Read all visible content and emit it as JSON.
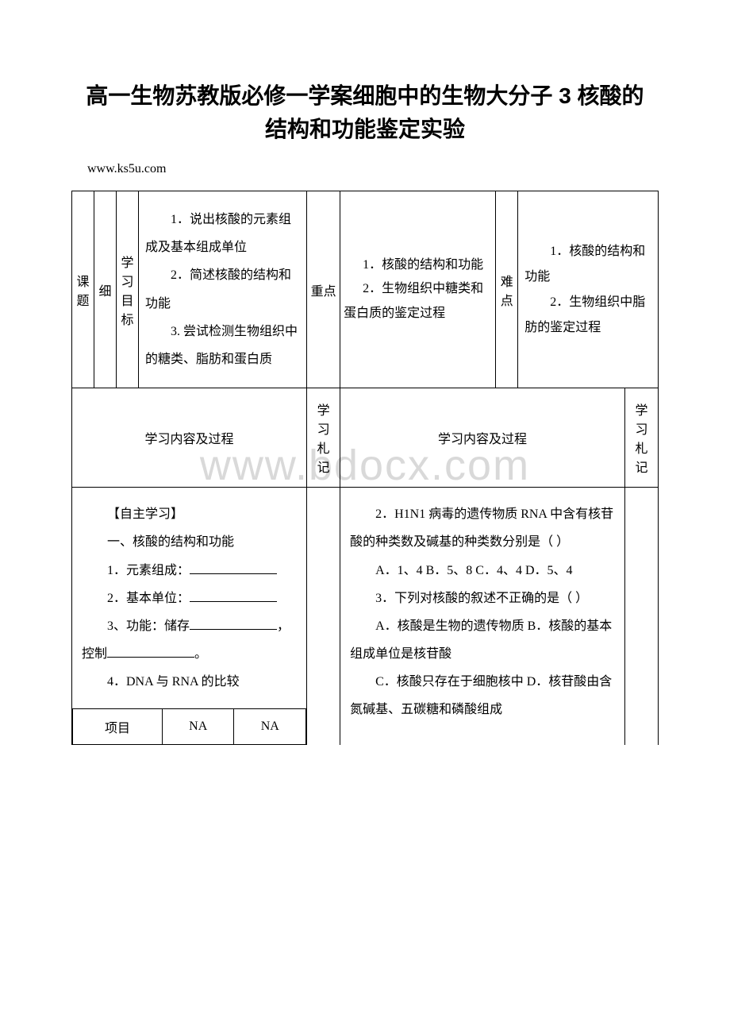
{
  "title_line1": "高一生物苏教版必修一学案细胞中的生物大分子 3 核酸的",
  "title_line2": "结构和功能鉴定实验",
  "url": "www.ks5u.com",
  "labels": {
    "topic": "课题",
    "topic_val": "细",
    "goal": "学习目标",
    "key": "重点",
    "diff": "难点",
    "content_hdr_left": "学习内容及过程",
    "note_hdr": "学习札记",
    "content_hdr_right": "学习内容及过程"
  },
  "goals": {
    "g1": "1．说出核酸的元素组成及基本组成单位",
    "g2": "2．简述核酸的结构和功能",
    "g3": "3. 尝试检测生物组织中的糖类、脂肪和蛋白质"
  },
  "keypts": {
    "k1a": "1．核酸的结构和功能",
    "k2a": "2．生物组织中糖类和蛋白质的鉴定过程"
  },
  "diffpts": {
    "d1": "1．核酸的结构和功能",
    "d2": "2．生物组织中脂肪的鉴定过程"
  },
  "left": {
    "h1": "【自主学习】",
    "h2": "一、核酸的结构和功能",
    "l1": "1．元素组成：",
    "l2": "2．基本单位：",
    "l3a": "3、功能：储存",
    "l3b": "，控制",
    "l3c": "。",
    "l4": "4．DNA 与 RNA 的比较",
    "tbl": {
      "c0": "项目",
      "c1": "NA",
      "c2": "NA"
    }
  },
  "right": {
    "q2": "2．H1N1 病毒的遗传物质 RNA 中含有核苷酸的种类数及碱基的种类数分别是（ ）",
    "q2o": "A．1、4 B．5、8 C．4、4 D．5、4",
    "q3": "3．下列对核酸的叙述不正确的是（ ）",
    "q3a": "A．核酸是生物的遗传物质 B．核酸的基本组成单位是核苷酸",
    "q3b": "C．核酸只存在于细胞核中 D．核苷酸由含氮碱基、五碳糖和磷酸组成"
  },
  "watermark": "www.bdocx.com",
  "colors": {
    "border": "#000000",
    "wm": "#d9d9d9",
    "bg": "#ffffff"
  }
}
